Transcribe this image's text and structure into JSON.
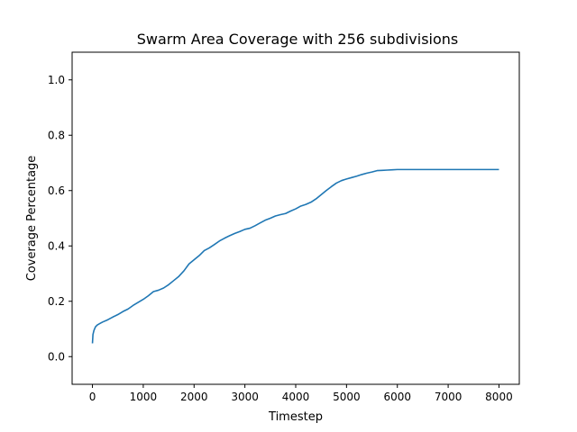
{
  "chart_data": {
    "type": "line",
    "title": "Swarm Area Coverage with 256 subdivisions",
    "xlabel": "Timestep",
    "ylabel": "Coverage Percentage",
    "xlim": [
      -400,
      8400
    ],
    "ylim": [
      -0.1,
      1.1
    ],
    "xticks": [
      0,
      1000,
      2000,
      3000,
      4000,
      5000,
      6000,
      7000,
      8000
    ],
    "yticks": [
      0.0,
      0.2,
      0.4,
      0.6,
      0.8,
      1.0
    ],
    "xtick_labels": [
      "0",
      "1000",
      "2000",
      "3000",
      "4000",
      "5000",
      "6000",
      "7000",
      "8000"
    ],
    "ytick_labels": [
      "0.0",
      "0.2",
      "0.4",
      "0.6",
      "0.8",
      "1.0"
    ],
    "grid": false,
    "color": "#1f77b4",
    "series": [
      {
        "x": [
          0,
          10,
          30,
          60,
          100,
          150,
          200,
          300,
          400,
          500,
          600,
          700,
          800,
          900,
          1000,
          1100,
          1200,
          1300,
          1400,
          1500,
          1600,
          1700,
          1800,
          1900,
          2000,
          2100,
          2200,
          2300,
          2400,
          2500,
          2600,
          2700,
          2800,
          2900,
          3000,
          3100,
          3200,
          3300,
          3400,
          3500,
          3600,
          3700,
          3800,
          3900,
          4000,
          4100,
          4200,
          4300,
          4400,
          4500,
          4600,
          4700,
          4800,
          4900,
          5000,
          5100,
          5200,
          5300,
          5400,
          5500,
          5600,
          5700,
          5800,
          5900,
          6000,
          6500,
          7000,
          7500,
          8000
        ],
        "y": [
          0.048,
          0.08,
          0.095,
          0.108,
          0.115,
          0.12,
          0.125,
          0.133,
          0.143,
          0.152,
          0.163,
          0.172,
          0.185,
          0.196,
          0.207,
          0.22,
          0.235,
          0.24,
          0.248,
          0.26,
          0.275,
          0.29,
          0.31,
          0.335,
          0.35,
          0.365,
          0.383,
          0.393,
          0.405,
          0.418,
          0.428,
          0.437,
          0.445,
          0.452,
          0.46,
          0.464,
          0.473,
          0.483,
          0.493,
          0.5,
          0.508,
          0.513,
          0.517,
          0.526,
          0.534,
          0.544,
          0.55,
          0.558,
          0.57,
          0.585,
          0.6,
          0.614,
          0.627,
          0.636,
          0.642,
          0.647,
          0.652,
          0.658,
          0.663,
          0.667,
          0.672,
          0.673,
          0.674,
          0.675,
          0.676,
          0.676,
          0.676,
          0.676,
          0.676
        ]
      }
    ]
  }
}
